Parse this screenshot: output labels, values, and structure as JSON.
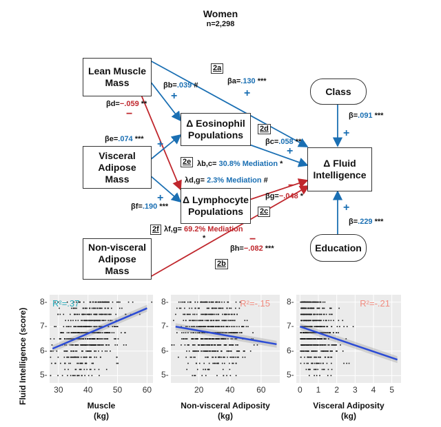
{
  "title": "Women",
  "subtitle": "n=2,298",
  "nodes": {
    "lean": "Lean Muscle\nMass",
    "visceral": "Visceral\nAdipose\nMass",
    "nonvisceral": "Non-visceral\nAdipose\nMass",
    "eosinophil": "Δ Eosinophil\nPopulations",
    "lymphocyte": "Δ Lymphocyte\nPopulations",
    "fluid": "Δ Fluid\nIntelligence",
    "class": "Class",
    "education": "Education"
  },
  "path_tags": {
    "a": "2a",
    "b": "2b",
    "c": "2c",
    "d": "2d",
    "e": "2e",
    "f": "2f"
  },
  "coefficients": {
    "beta_a": {
      "label": "βa=",
      "value": ".130",
      "stars": "***"
    },
    "beta_b": {
      "label": "βb=",
      "value": ".039",
      "stars": "#"
    },
    "beta_c": {
      "label": "βc=",
      "value": ".058",
      "stars": "**"
    },
    "beta_d": {
      "label": "βd=",
      "value": "−.059",
      "stars": "**"
    },
    "beta_e": {
      "label": "βe=",
      "value": ".074",
      "stars": "***"
    },
    "beta_f": {
      "label": "βf=",
      "value": ".190",
      "stars": "***"
    },
    "beta_g": {
      "label": "βg=",
      "value": "−.048",
      "stars": "*"
    },
    "beta_h": {
      "label": "βh=",
      "value": "−.082",
      "stars": "***"
    },
    "beta_class": {
      "label": "β=",
      "value": ".091",
      "stars": "***"
    },
    "beta_edu": {
      "label": "β=",
      "value": ".229",
      "stars": "***"
    }
  },
  "mediation": {
    "bc": {
      "label": "λb,c=",
      "value": "30.8% Mediation",
      "stars": "*"
    },
    "dg": {
      "label": "λd,g=",
      "value": "2.3% Mediation",
      "stars": "#"
    },
    "fg": {
      "label": "λf,g=",
      "value": "69.2% Mediation",
      "stars": "*"
    }
  },
  "signs": {
    "plus": "+",
    "minus": "−"
  },
  "colors": {
    "positive": "#1a6fb3",
    "negative": "#c0272d",
    "panel_bg": "#ebebeb",
    "fit_line": "#2b4bd6",
    "r2_positive": "#27a9b8",
    "r2_negative": "#f08a7e"
  },
  "chart_data": [
    {
      "type": "scatter",
      "xlabel": "Muscle\n(kg)",
      "ylabel": "Fluid Intelligence (score)",
      "r2": "R²=.37",
      "xlim": [
        27,
        62
      ],
      "ylim": [
        4.7,
        8.3
      ],
      "x_ticks": [
        "30",
        "40",
        "50",
        "60"
      ],
      "y_ticks": [
        "5",
        "6",
        "7",
        "8"
      ],
      "fit": {
        "x": [
          28,
          60
        ],
        "y": [
          6.1,
          7.75
        ]
      }
    },
    {
      "type": "scatter",
      "xlabel": "Non-visceral Adiposity\n(kg)",
      "ylabel": "",
      "r2": "R²=-.15",
      "xlim": [
        2,
        72
      ],
      "ylim": [
        4.7,
        8.3
      ],
      "x_ticks": [
        "20",
        "40",
        "60"
      ],
      "y_ticks": [
        "5",
        "6",
        "7",
        "8"
      ],
      "fit": {
        "x": [
          5,
          70
        ],
        "y": [
          7.0,
          6.28
        ]
      }
    },
    {
      "type": "scatter",
      "xlabel": "Visceral Adiposity\n(kg)",
      "ylabel": "",
      "r2": "R²=-.21",
      "xlim": [
        -0.2,
        5.5
      ],
      "ylim": [
        4.7,
        8.3
      ],
      "x_ticks": [
        "0",
        "1",
        "2",
        "3",
        "4",
        "5"
      ],
      "y_ticks": [
        "5",
        "6",
        "7",
        "8"
      ],
      "fit": {
        "x": [
          0,
          5.3
        ],
        "y": [
          7.0,
          5.65
        ]
      }
    }
  ]
}
